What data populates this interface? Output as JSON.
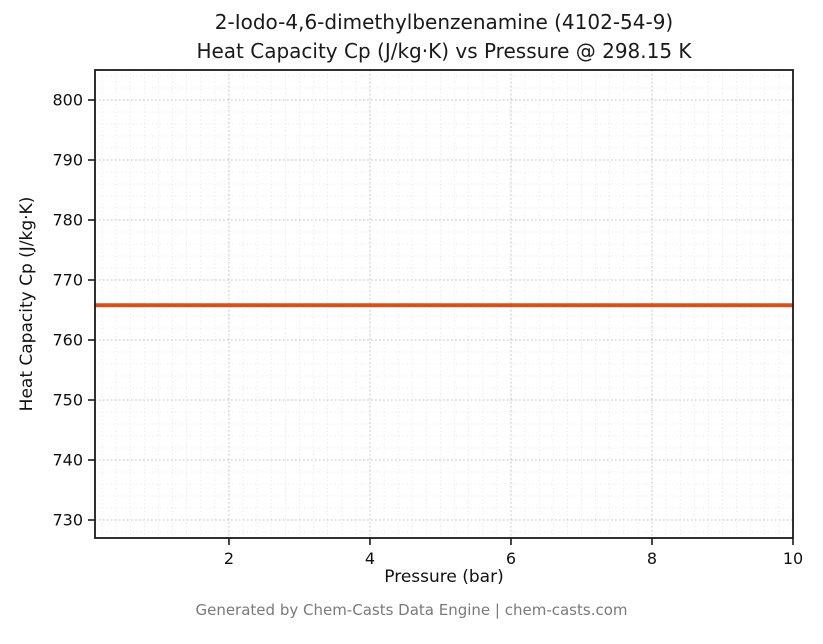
{
  "title_line1": "2-Iodo-4,6-dimethylbenzenamine (4102-54-9)",
  "title_line2": "Heat Capacity Cp (J/kg·K) vs Pressure @ 298.15 K",
  "footer": "Generated by Chem-Casts Data Engine | chem-casts.com",
  "chart_data": {
    "type": "line",
    "title": "2-Iodo-4,6-dimethylbenzenamine (4102-54-9)\nHeat Capacity Cp (J/kg·K) vs Pressure @ 298.15 K",
    "xlabel": "Pressure (bar)",
    "ylabel": "Heat Capacity Cp (J/kg·K)",
    "xlim": [
      0.1,
      10
    ],
    "ylim": [
      727,
      805
    ],
    "x_ticks": [
      2,
      4,
      6,
      8,
      10
    ],
    "y_ticks": [
      730,
      740,
      750,
      760,
      770,
      780,
      790,
      800
    ],
    "x_minor_step": 0.2,
    "y_minor_step": 2,
    "grid": true,
    "legend": "none",
    "line_color": "#d2531c",
    "constant_value": 765.8,
    "series": [
      {
        "name": "Heat Capacity Cp",
        "color": "#d2531c",
        "x": [
          0.1,
          10
        ],
        "y": [
          765.8,
          765.8
        ]
      }
    ]
  }
}
